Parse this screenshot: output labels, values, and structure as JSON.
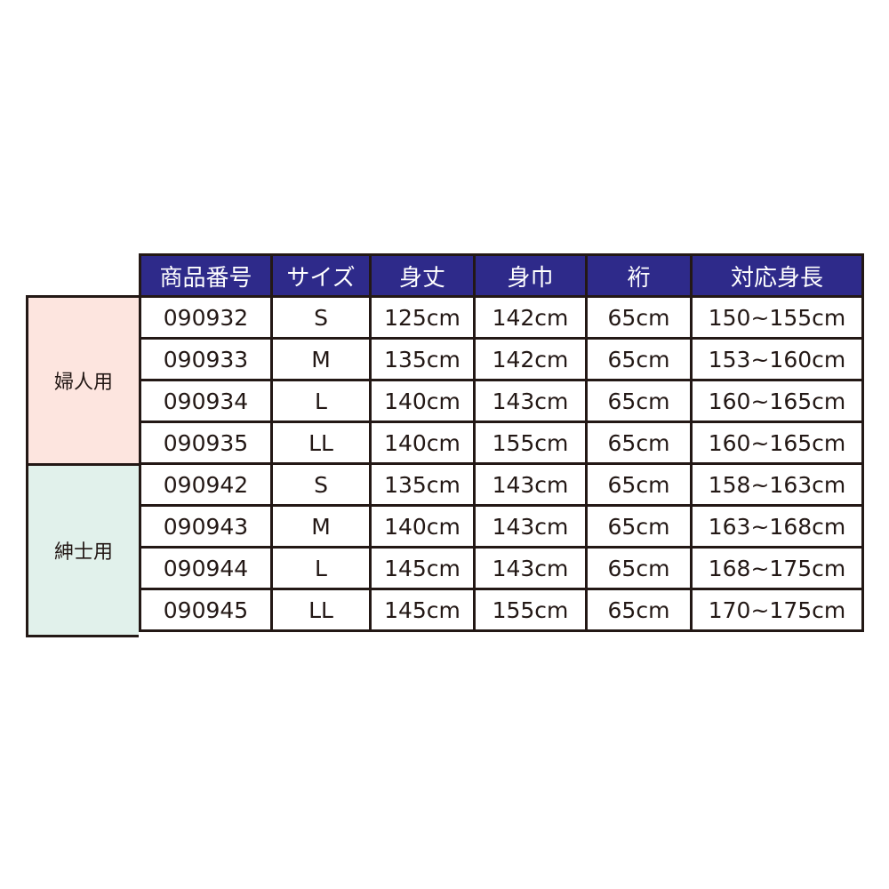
{
  "headers": [
    "商品番号",
    "サイズ",
    "身丈",
    "身巾",
    "裄",
    "対応身長"
  ],
  "groups": [
    {
      "label": "婦人用",
      "color": "#fde5df",
      "rows": [
        [
          "090932",
          "S",
          "125cm",
          "142cm",
          "65cm",
          "150~155cm"
        ],
        [
          "090933",
          "M",
          "135cm",
          "142cm",
          "65cm",
          "153~160cm"
        ],
        [
          "090934",
          "L",
          "140cm",
          "143cm",
          "65cm",
          "160~165cm"
        ],
        [
          "090935",
          "LL",
          "140cm",
          "155cm",
          "65cm",
          "160~165cm"
        ]
      ]
    },
    {
      "label": "紳士用",
      "color": "#e1f1eb",
      "rows": [
        [
          "090942",
          "S",
          "135cm",
          "143cm",
          "65cm",
          "158~163cm"
        ],
        [
          "090943",
          "M",
          "140cm",
          "143cm",
          "65cm",
          "163~168cm"
        ],
        [
          "090944",
          "L",
          "145cm",
          "143cm",
          "65cm",
          "168~175cm"
        ],
        [
          "090945",
          "LL",
          "145cm",
          "155cm",
          "65cm",
          "170~175cm"
        ]
      ]
    }
  ],
  "colors": {
    "header": "#2e2a8a",
    "border": "#231815"
  }
}
